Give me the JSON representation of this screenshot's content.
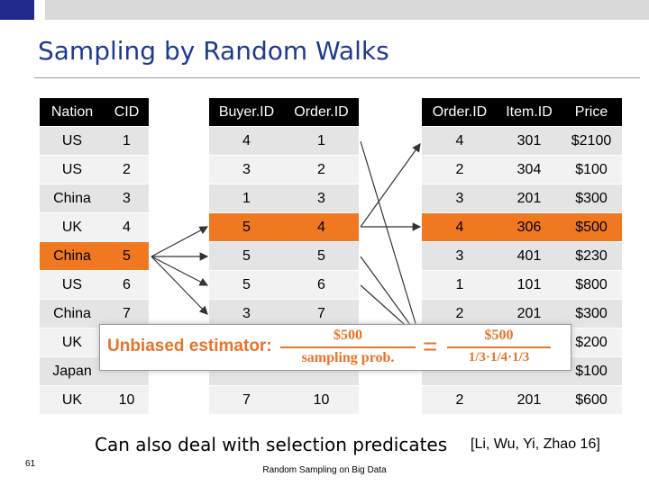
{
  "header": {
    "title": "Sampling by Random Walks"
  },
  "tables": [
    {
      "columns": [
        "Nation",
        "CID"
      ],
      "rows": [
        [
          "US",
          "1"
        ],
        [
          "US",
          "2"
        ],
        [
          "China",
          "3"
        ],
        [
          "UK",
          "4"
        ],
        [
          "China",
          "5"
        ],
        [
          "US",
          "6"
        ],
        [
          "China",
          "7"
        ],
        [
          "UK",
          null
        ],
        [
          "Japan",
          null
        ],
        [
          "UK",
          "10"
        ]
      ]
    },
    {
      "columns": [
        "Buyer.ID",
        "Order.ID"
      ],
      "rows": [
        [
          "4",
          "1"
        ],
        [
          "3",
          "2"
        ],
        [
          "1",
          "3"
        ],
        [
          "5",
          "4"
        ],
        [
          "5",
          "5"
        ],
        [
          "5",
          "6"
        ],
        [
          "3",
          "7"
        ],
        [
          null,
          null
        ],
        [
          null,
          null
        ],
        [
          "7",
          "10"
        ]
      ]
    },
    {
      "columns": [
        "Order.ID",
        "Item.ID",
        "Price"
      ],
      "rows": [
        [
          "4",
          "301",
          "$2100"
        ],
        [
          "2",
          "304",
          "$100"
        ],
        [
          "3",
          "201",
          "$300"
        ],
        [
          "4",
          "306",
          "$500"
        ],
        [
          "3",
          "401",
          "$230"
        ],
        [
          "1",
          "101",
          "$800"
        ],
        [
          "2",
          "201",
          "$300"
        ],
        [
          null,
          null,
          "$200"
        ],
        [
          null,
          null,
          "$100"
        ],
        [
          "2",
          "201",
          "$600"
        ]
      ]
    }
  ],
  "estimator": {
    "label": "Unbiased estimator:",
    "numerator_left": "$500",
    "denominator_left": "sampling prob.",
    "equals": "=",
    "numerator_right": "$500",
    "denominator_right": "1/3·1/4·1/3"
  },
  "footer": {
    "note": "Can also deal with selection predicates",
    "citation": "[Li, Wu, Yi, Zhao 16]",
    "page_number": "61",
    "deck_title": "Random Sampling on Big Data"
  }
}
